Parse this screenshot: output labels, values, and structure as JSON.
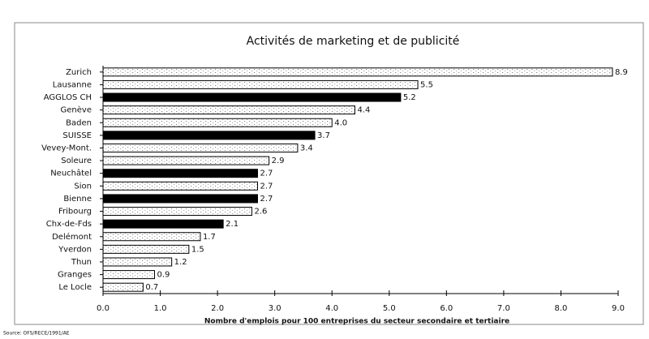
{
  "chart_data": {
    "type": "barh",
    "title": "Activités de marketing et de publicité",
    "xlabel": "Nombre d'emplois pour 100 entreprises du secteur secondaire et tertiaire",
    "source": "Source: OFS/RECE/1991/AE",
    "categories": [
      "Zurich",
      "Lausanne",
      "AGGLOS CH",
      "Genève",
      "Baden",
      "SUISSE",
      "Vevey-Mont.",
      "Soleure",
      "Neuchâtel",
      "Sion",
      "Bienne",
      "Fribourg",
      "Chx-de-Fds",
      "Delémont",
      "Yverdon",
      "Thun",
      "Granges",
      "Le Locle"
    ],
    "values": [
      8.9,
      5.5,
      5.2,
      4.4,
      4.0,
      3.7,
      3.4,
      2.9,
      2.7,
      2.7,
      2.7,
      2.6,
      2.1,
      1.7,
      1.5,
      1.2,
      0.9,
      0.7
    ],
    "value_labels": [
      "8.9",
      "5.5",
      "5.2",
      "4.4",
      "4.0",
      "3.7",
      "3.4",
      "2.9",
      "2.7",
      "2.7",
      "2.7",
      "2.6",
      "2.1",
      "1.7",
      "1.5",
      "1.2",
      "0.9",
      "0.7"
    ],
    "colors": [
      "#ffffff",
      "#ffffff",
      "#000000",
      "#ffffff",
      "#ffffff",
      "#000000",
      "#ffffff",
      "#ffffff",
      "#000000",
      "#ffffff",
      "#000000",
      "#ffffff",
      "#000000",
      "#ffffff",
      "#ffffff",
      "#ffffff",
      "#ffffff",
      "#ffffff"
    ],
    "xlim": [
      0,
      9
    ],
    "xticks": [
      {
        "value": 0,
        "label": "0.0"
      },
      {
        "value": 1,
        "label": "1.0"
      },
      {
        "value": 2,
        "label": "2.0"
      },
      {
        "value": 3,
        "label": "3.0"
      },
      {
        "value": 4,
        "label": "4.0"
      },
      {
        "value": 5,
        "label": "5.0"
      },
      {
        "value": 6,
        "label": "6.0"
      },
      {
        "value": 7,
        "label": "7.0"
      },
      {
        "value": 8,
        "label": "8.0"
      },
      {
        "value": 9,
        "label": "9.0"
      }
    ]
  }
}
